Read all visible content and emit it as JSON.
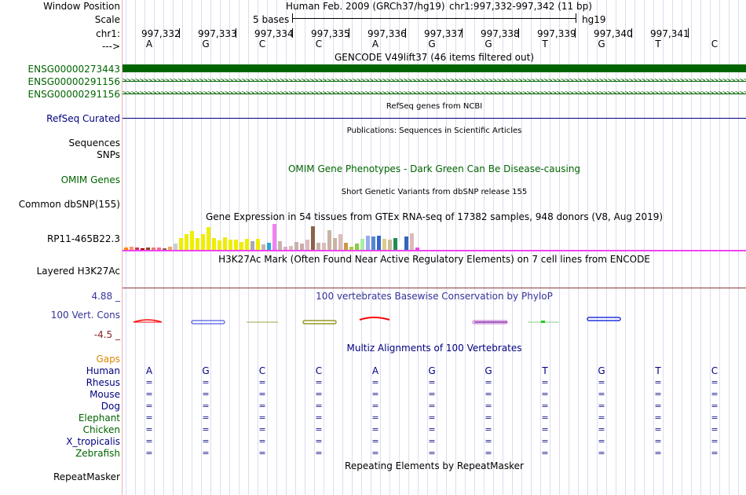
{
  "header": {
    "window_position_label": "Window Position",
    "assembly": "Human Feb. 2009 (GRCh37/hg19)",
    "position": "chr1:997,332-997,342 (11 bp)",
    "scale_label": "Scale",
    "scale_text": "5 bases",
    "scale_db": "hg19",
    "chrom_label": "chr1:",
    "strand_label": "--->",
    "coords": [
      "997,332",
      "997,333",
      "997,334",
      "997,335",
      "997,336",
      "997,337",
      "997,338",
      "997,339",
      "997,340",
      "997,341"
    ],
    "bases": [
      "A",
      "G",
      "C",
      "C",
      "A",
      "G",
      "G",
      "T",
      "G",
      "T",
      "C"
    ]
  },
  "tracks": {
    "gencode": {
      "title": "GENCODE V49lift37 (46 items filtered out)",
      "items": [
        "ENSG00000273443",
        "ENSG00000291156",
        "ENSG00000291156"
      ]
    },
    "refseq": {
      "title": "RefSeq genes from NCBI",
      "label": "RefSeq Curated"
    },
    "publications": {
      "title": "Publications: Sequences in Scientific Articles",
      "label1": "Sequences",
      "label2": "SNPs"
    },
    "omim": {
      "title": "OMIM Gene Phenotypes - Dark Green Can Be Disease-causing",
      "label": "OMIM Genes"
    },
    "dbsnp": {
      "title": "Short Genetic Variants from dbSNP release 155",
      "label": "Common dbSNP(155)"
    },
    "gtex": {
      "title": "Gene Expression in 54 tissues from GTEx RNA-seq of 17382 samples, 948 donors (V8, Aug 2019)",
      "label": "RP11-465B22.3",
      "values": [
        0.08,
        0.12,
        0.08,
        0.06,
        0.08,
        0.1,
        0.08,
        0.06,
        0.12,
        0.25,
        0.45,
        0.6,
        0.72,
        0.45,
        0.62,
        0.88,
        0.45,
        0.35,
        0.48,
        0.4,
        0.4,
        0.3,
        0.42,
        0.34,
        0.42,
        0.22,
        0.28,
        1.0,
        0.32,
        0.12,
        0.15,
        0.3,
        0.24,
        0.4,
        0.9,
        0.28,
        0.28,
        0.75,
        0.45,
        0.62,
        0.28,
        0.12,
        0.25,
        0.42,
        0.55,
        0.5,
        0.55,
        0.42,
        0.38,
        0.45,
        0.32,
        0.5,
        0.65,
        0.08
      ],
      "colors": [
        "#ff8c00",
        "#ff9966",
        "#cc3366",
        "#aa0000",
        "#8b4513",
        "#e08070",
        "#ff6699",
        "#886644",
        "#f4a460",
        "#cccccc",
        "#eeee00",
        "#eeee00",
        "#eeee00",
        "#eeee00",
        "#eeee00",
        "#eeee00",
        "#eeee00",
        "#eeee00",
        "#eeee00",
        "#eeee00",
        "#eeee00",
        "#eeee00",
        "#eeee00",
        "#aaaaaa",
        "#eeee00",
        "#c4b4ac",
        "#22aadd",
        "#ee82ee",
        "#c4b4ac",
        "#ddaacc",
        "#ddbbbb",
        "#c4b4ac",
        "#ccaaaa",
        "#ddbbbb",
        "#8b6347",
        "#c4b4ac",
        "#ddbbbb",
        "#c8b4a4",
        "#c8b4a4",
        "#ddbbbb",
        "#cc9944",
        "#aacc44",
        "#88cc44",
        "#aaeeaa",
        "#99aaee",
        "#5588cc",
        "#3366cc",
        "#ddcc88",
        "#ccbb99",
        "#228b55",
        "#ffffff",
        "#3366bb",
        "#ddbbbb",
        "#ee44ee"
      ]
    },
    "h3k27ac": {
      "title": "H3K27Ac Mark (Often Found Near Active Regulatory Elements) on 7 cell lines from ENCODE",
      "label": "Layered H3K27Ac"
    },
    "conservation": {
      "title": "100 vertebrates Basewise Conservation by PhyloP",
      "label": "100 Vert. Cons",
      "max": "4.88 _",
      "min": "-4.5 _"
    },
    "multiz": {
      "title": "Multiz Alignments of 100 Vertebrates",
      "gaps_label": "Gaps",
      "species": [
        "Human",
        "Rhesus",
        "Mouse",
        "Dog",
        "Elephant",
        "Chicken",
        "X_tropicalis",
        "Zebrafish"
      ],
      "match_symbol": "="
    },
    "repeatmasker": {
      "title": "Repeating Elements by RepeatMasker",
      "label": "RepeatMasker"
    }
  },
  "colors": {
    "label_green": "#006400",
    "label_navy": "#000080",
    "gaps_orange": "#dd8800",
    "cons_blue": "#333399",
    "cons_red": "#882222",
    "track_pink": "#ee44ee"
  }
}
